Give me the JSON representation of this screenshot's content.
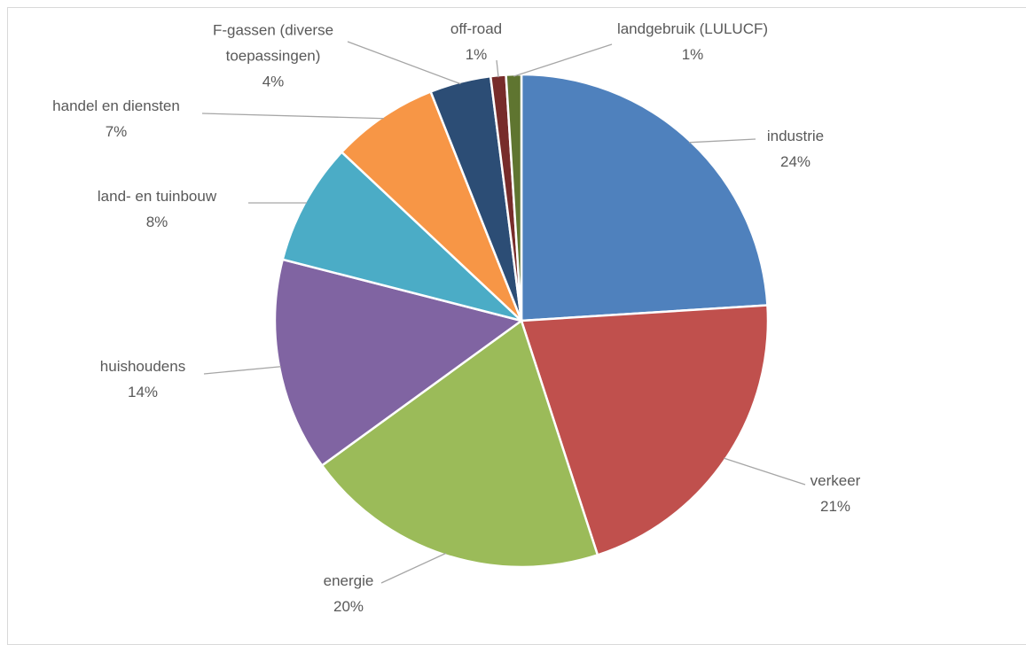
{
  "chart_data": {
    "type": "pie",
    "categories": [
      "industrie",
      "verkeer",
      "energie",
      "huishoudens",
      "land- en tuinbouw",
      "handel en diensten",
      "F-gassen (diverse toepassingen)",
      "off-road",
      "landgebruik (LULUCF)"
    ],
    "values": [
      24,
      21,
      20,
      14,
      8,
      7,
      4,
      1,
      1
    ],
    "value_labels": [
      "24%",
      "21%",
      "20%",
      "14%",
      "8%",
      "7%",
      "4%",
      "1%",
      "1%"
    ],
    "colors": [
      "#4f81bd",
      "#c0504d",
      "#9bbb59",
      "#8064a2",
      "#4bacc6",
      "#f79646",
      "#2c4d75",
      "#772c2a",
      "#5f7530"
    ]
  }
}
